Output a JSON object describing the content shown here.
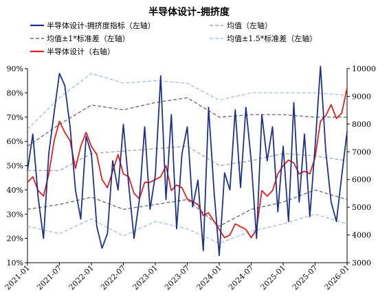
{
  "chart_data": {
    "type": "line",
    "title": "半导体设计-拥挤度",
    "x_ticks": [
      "2021-01",
      "2021-07",
      "2022-01",
      "2022-07",
      "2023-01",
      "2023-07",
      "2024-01",
      "2024-07",
      "2025-01",
      "2025-07",
      "2026-01"
    ],
    "x_range": [
      "2021-01",
      "2026-01"
    ],
    "y_left": {
      "ticks": [
        "10%",
        "20%",
        "30%",
        "40%",
        "50%",
        "60%",
        "70%",
        "80%",
        "90%"
      ],
      "range": [
        0.1,
        0.9
      ]
    },
    "y_right": {
      "ticks": [
        "3000",
        "4000",
        "5000",
        "6000",
        "7000",
        "8000",
        "9000",
        "10000"
      ],
      "range": [
        3000,
        10000
      ]
    },
    "legend_position": "top",
    "grid": false,
    "series": [
      {
        "name": "半导体设计-拥挤度指标（左轴）",
        "axis": "left",
        "color": "#1f2f8a",
        "style": "solid",
        "points": [
          [
            "2021-01",
            0.48
          ],
          [
            "2021-02",
            0.63
          ],
          [
            "2021-03",
            0.37
          ],
          [
            "2021-04",
            0.2
          ],
          [
            "2021-05",
            0.55
          ],
          [
            "2021-06",
            0.72
          ],
          [
            "2021-07",
            0.88
          ],
          [
            "2021-08",
            0.83
          ],
          [
            "2021-09",
            0.66
          ],
          [
            "2021-10",
            0.4
          ],
          [
            "2021-11",
            0.28
          ],
          [
            "2021-12",
            0.62
          ],
          [
            "2022-01",
            0.55
          ],
          [
            "2022-02",
            0.25
          ],
          [
            "2022-03",
            0.16
          ],
          [
            "2022-04",
            0.22
          ],
          [
            "2022-05",
            0.52
          ],
          [
            "2022-06",
            0.4
          ],
          [
            "2022-07",
            0.67
          ],
          [
            "2022-08",
            0.42
          ],
          [
            "2022-09",
            0.2
          ],
          [
            "2022-10",
            0.36
          ],
          [
            "2022-11",
            0.66
          ],
          [
            "2022-12",
            0.32
          ],
          [
            "2023-01",
            0.46
          ],
          [
            "2023-02",
            0.87
          ],
          [
            "2023-03",
            0.36
          ],
          [
            "2023-04",
            0.71
          ],
          [
            "2023-05",
            0.24
          ],
          [
            "2023-06",
            0.55
          ],
          [
            "2023-07",
            0.66
          ],
          [
            "2023-08",
            0.33
          ],
          [
            "2023-09",
            0.44
          ],
          [
            "2023-10",
            0.15
          ],
          [
            "2023-11",
            0.74
          ],
          [
            "2023-12",
            0.4
          ],
          [
            "2024-01",
            0.13
          ],
          [
            "2024-02",
            0.47
          ],
          [
            "2024-03",
            0.4
          ],
          [
            "2024-04",
            0.73
          ],
          [
            "2024-05",
            0.41
          ],
          [
            "2024-06",
            0.74
          ],
          [
            "2024-07",
            0.52
          ],
          [
            "2024-08",
            0.2
          ],
          [
            "2024-09",
            0.71
          ],
          [
            "2024-10",
            0.52
          ],
          [
            "2024-11",
            0.66
          ],
          [
            "2024-12",
            0.31
          ],
          [
            "2025-01",
            0.58
          ],
          [
            "2025-02",
            0.27
          ],
          [
            "2025-03",
            0.76
          ],
          [
            "2025-04",
            0.35
          ],
          [
            "2025-05",
            0.63
          ],
          [
            "2025-06",
            0.29
          ],
          [
            "2025-07",
            0.58
          ],
          [
            "2025-08",
            0.91
          ],
          [
            "2025-09",
            0.56
          ],
          [
            "2025-10",
            0.35
          ],
          [
            "2025-11",
            0.27
          ],
          [
            "2025-12",
            0.46
          ],
          [
            "2026-01",
            0.64
          ]
        ]
      },
      {
        "name": "均值（左轴）",
        "axis": "left",
        "color": "#a8a8a8",
        "style": "dashed",
        "points": [
          [
            "2021-01",
            0.48
          ],
          [
            "2021-07",
            0.48
          ],
          [
            "2022-01",
            0.55
          ],
          [
            "2022-07",
            0.56
          ],
          [
            "2023-01",
            0.57
          ],
          [
            "2023-07",
            0.58
          ],
          [
            "2024-01",
            0.5
          ],
          [
            "2024-07",
            0.52
          ],
          [
            "2025-01",
            0.55
          ],
          [
            "2025-07",
            0.54
          ],
          [
            "2026-01",
            0.52
          ]
        ]
      },
      {
        "name": "均值±1*标准差（左轴）",
        "axis": "left",
        "color": "#707070",
        "style": "dashed",
        "points": [
          [
            "2021-01",
            0.58
          ],
          [
            "2021-07",
            0.67
          ],
          [
            "2022-01",
            0.75
          ],
          [
            "2022-07",
            0.73
          ],
          [
            "2023-01",
            0.76
          ],
          [
            "2023-07",
            0.78
          ],
          [
            "2024-01",
            0.7
          ],
          [
            "2024-07",
            0.71
          ],
          [
            "2025-01",
            0.71
          ],
          [
            "2025-07",
            0.7
          ],
          [
            "2026-01",
            0.7
          ]
        ]
      },
      {
        "name": "均值±1*标准差（左轴）",
        "axis": "left",
        "color": "#707070",
        "style": "dashed",
        "legend": false,
        "points": [
          [
            "2021-01",
            0.32
          ],
          [
            "2021-07",
            0.34
          ],
          [
            "2022-01",
            0.37
          ],
          [
            "2022-07",
            0.32
          ],
          [
            "2023-01",
            0.34
          ],
          [
            "2023-07",
            0.36
          ],
          [
            "2024-01",
            0.25
          ],
          [
            "2024-07",
            0.32
          ],
          [
            "2025-01",
            0.35
          ],
          [
            "2025-07",
            0.4
          ],
          [
            "2026-01",
            0.36
          ]
        ]
      },
      {
        "name": "均值±1.5*标准差（左轴）",
        "axis": "left",
        "color": "#aac0e4",
        "style": "dashed",
        "points": [
          [
            "2021-01",
            0.65
          ],
          [
            "2021-07",
            0.78
          ],
          [
            "2022-01",
            0.88
          ],
          [
            "2022-07",
            0.84
          ],
          [
            "2023-01",
            0.85
          ],
          [
            "2023-07",
            0.84
          ],
          [
            "2024-01",
            0.77
          ],
          [
            "2024-07",
            0.8
          ],
          [
            "2025-01",
            0.8
          ],
          [
            "2025-07",
            0.8
          ],
          [
            "2026-01",
            0.79
          ]
        ]
      },
      {
        "name": "均值±1.5*标准差（左轴）",
        "axis": "left",
        "color": "#aac0e4",
        "style": "dashed",
        "legend": false,
        "points": [
          [
            "2021-01",
            0.25
          ],
          [
            "2021-07",
            0.22
          ],
          [
            "2022-01",
            0.28
          ],
          [
            "2022-07",
            0.21
          ],
          [
            "2023-01",
            0.27
          ],
          [
            "2023-07",
            0.24
          ],
          [
            "2024-01",
            0.18
          ],
          [
            "2024-07",
            0.23
          ],
          [
            "2025-01",
            0.26
          ],
          [
            "2025-07",
            0.3
          ],
          [
            "2026-01",
            0.26
          ]
        ]
      },
      {
        "name": "半导体设计（右轴）",
        "axis": "right",
        "color": "#e02020",
        "style": "solid",
        "points": [
          [
            "2021-01",
            5900
          ],
          [
            "2021-02",
            6100
          ],
          [
            "2021-03",
            5600
          ],
          [
            "2021-04",
            5400
          ],
          [
            "2021-05",
            6200
          ],
          [
            "2021-06",
            7400
          ],
          [
            "2021-07",
            8100
          ],
          [
            "2021-08",
            7700
          ],
          [
            "2021-09",
            7400
          ],
          [
            "2021-10",
            6400
          ],
          [
            "2021-11",
            7200
          ],
          [
            "2021-12",
            7700
          ],
          [
            "2022-01",
            7200
          ],
          [
            "2022-02",
            6900
          ],
          [
            "2022-03",
            6000
          ],
          [
            "2022-04",
            5700
          ],
          [
            "2022-05",
            6300
          ],
          [
            "2022-06",
            6900
          ],
          [
            "2022-07",
            6200
          ],
          [
            "2022-08",
            6100
          ],
          [
            "2022-09",
            5500
          ],
          [
            "2022-10",
            5300
          ],
          [
            "2022-11",
            5900
          ],
          [
            "2022-12",
            5900
          ],
          [
            "2023-01",
            6000
          ],
          [
            "2023-02",
            6100
          ],
          [
            "2023-03",
            6500
          ],
          [
            "2023-04",
            5600
          ],
          [
            "2023-05",
            5800
          ],
          [
            "2023-06",
            5700
          ],
          [
            "2023-07",
            5300
          ],
          [
            "2023-08",
            5200
          ],
          [
            "2023-09",
            5100
          ],
          [
            "2023-10",
            4700
          ],
          [
            "2023-11",
            4800
          ],
          [
            "2023-12",
            4500
          ],
          [
            "2024-01",
            4200
          ],
          [
            "2024-02",
            3900
          ],
          [
            "2024-03",
            4000
          ],
          [
            "2024-04",
            4400
          ],
          [
            "2024-05",
            4300
          ],
          [
            "2024-06",
            4200
          ],
          [
            "2024-07",
            3900
          ],
          [
            "2024-08",
            4200
          ],
          [
            "2024-09",
            5600
          ],
          [
            "2024-10",
            5400
          ],
          [
            "2024-11",
            5600
          ],
          [
            "2024-12",
            6200
          ],
          [
            "2025-01",
            6500
          ],
          [
            "2025-02",
            6700
          ],
          [
            "2025-03",
            6600
          ],
          [
            "2025-04",
            6200
          ],
          [
            "2025-05",
            6300
          ],
          [
            "2025-06",
            6200
          ],
          [
            "2025-07",
            6800
          ],
          [
            "2025-08",
            8100
          ],
          [
            "2025-09",
            8300
          ],
          [
            "2025-10",
            8700
          ],
          [
            "2025-11",
            8200
          ],
          [
            "2025-12",
            8400
          ],
          [
            "2026-01",
            9300
          ]
        ]
      }
    ],
    "legend_labels": {
      "index": "半导体设计-拥挤度指标（左轴）",
      "mean": "均值（左轴）",
      "std1": "均值±1*标准差（左轴）",
      "std15": "均值±1.5*标准差（左轴）",
      "price": "半导体设计（右轴）"
    }
  }
}
